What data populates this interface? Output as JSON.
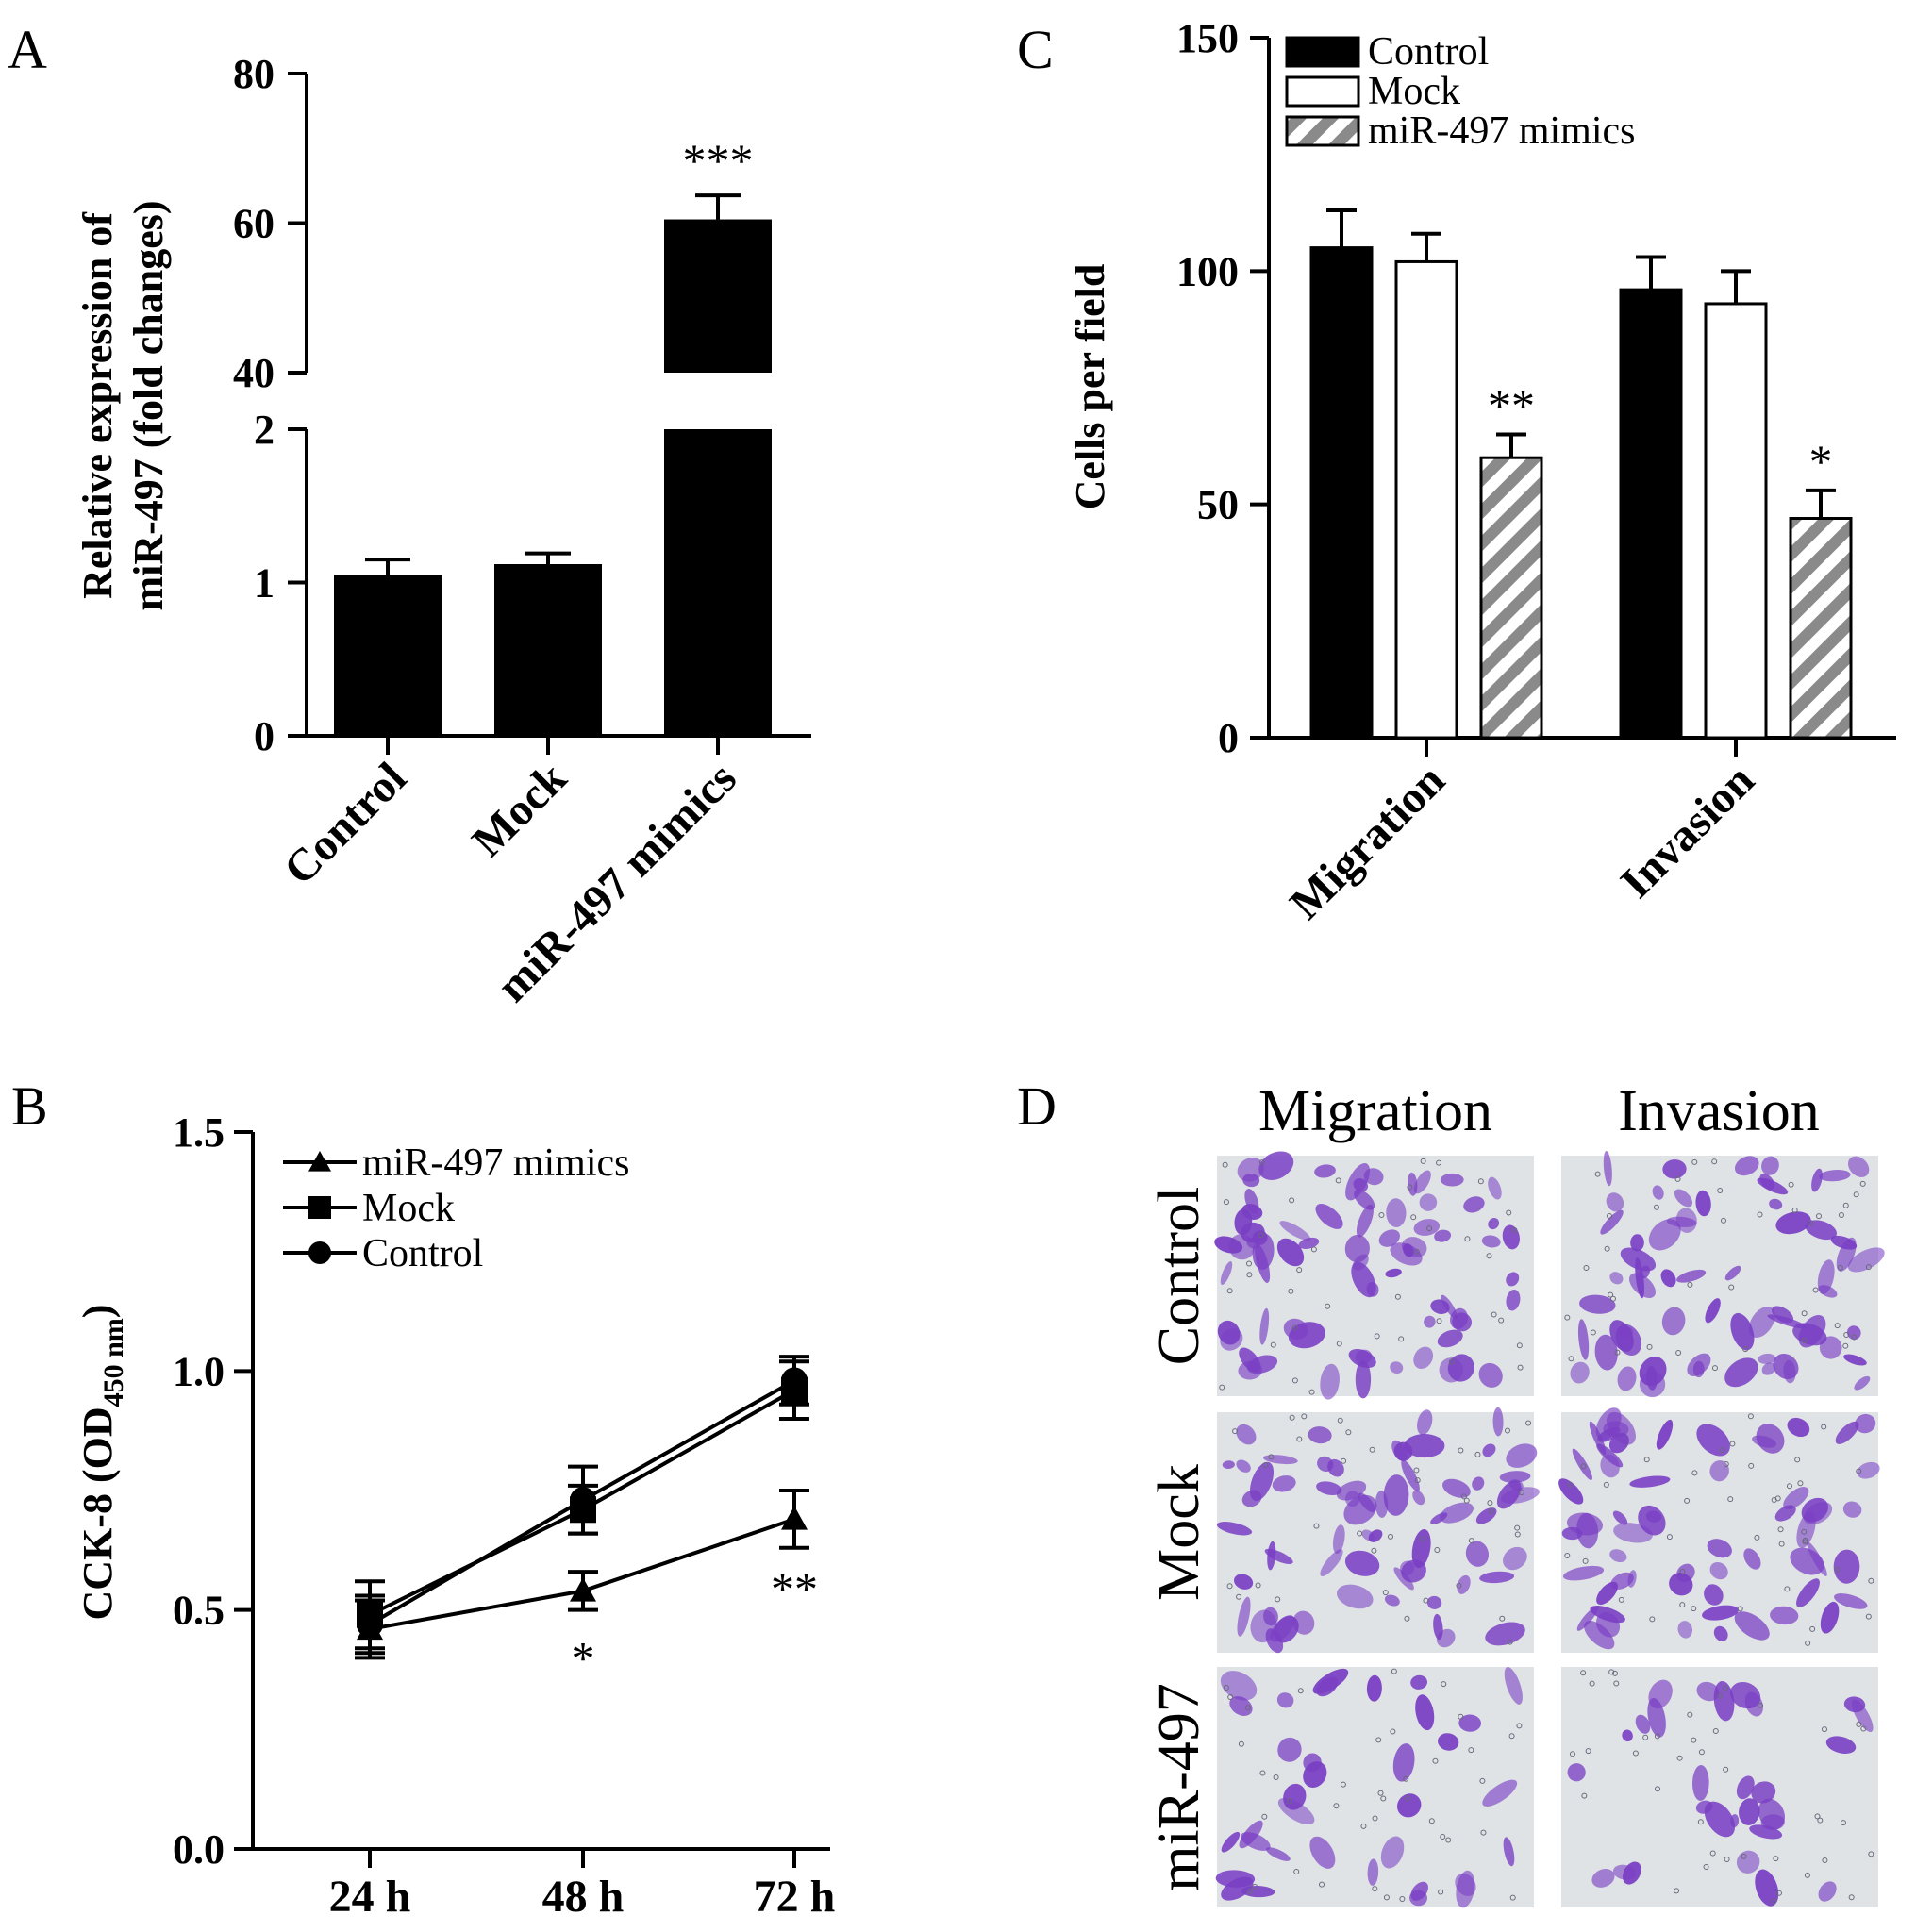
{
  "chart_data": [
    {
      "panel": "A",
      "type": "bar",
      "ylabel_line1": "Relative expression of",
      "ylabel_line2": "miR-497 (fold changes)",
      "categories": [
        "Control",
        "Mock",
        "miR-497 mimics"
      ],
      "values": [
        1.05,
        1.12,
        60.5
      ],
      "errors": [
        0.1,
        0.07,
        3.2
      ],
      "significance": [
        "",
        "",
        "***"
      ],
      "axis_break": true,
      "lower_ticks": [
        "0",
        "1",
        "2"
      ],
      "upper_ticks": [
        "40",
        "60",
        "80"
      ],
      "ylim_lower": [
        0,
        2
      ],
      "ylim_upper": [
        40,
        80
      ],
      "bar_color": "#000000"
    },
    {
      "panel": "C",
      "type": "bar",
      "ylabel": "Cells per field",
      "categories": [
        "Migration",
        "Invasion"
      ],
      "ylim": [
        0,
        150
      ],
      "yticks": [
        "0",
        "50",
        "100",
        "150"
      ],
      "legend_position": "top-left",
      "series": [
        {
          "name": "Control",
          "style": "solid",
          "color": "#000000",
          "values": [
            105,
            96
          ],
          "errors": [
            8,
            7
          ],
          "significance": [
            "",
            ""
          ]
        },
        {
          "name": "Mock",
          "style": "open",
          "color": "#ffffff",
          "values": [
            102,
            93
          ],
          "errors": [
            6,
            7
          ],
          "significance": [
            "",
            ""
          ]
        },
        {
          "name": "miR-497 mimics",
          "style": "hatched",
          "color": "#888888",
          "values": [
            60,
            47
          ],
          "errors": [
            5,
            6
          ],
          "significance": [
            "**",
            "*"
          ]
        }
      ]
    },
    {
      "panel": "B",
      "type": "line",
      "ylabel_main": "CCK-8 (OD",
      "ylabel_sub": "450 nm",
      "ylabel_end": ")",
      "categories": [
        "24 h",
        "48 h",
        "72 h"
      ],
      "ylim": [
        0,
        1.5
      ],
      "yticks": [
        "0.0",
        "0.5",
        "1.0",
        "1.5"
      ],
      "legend_position": "top-left",
      "series": [
        {
          "name": "miR-497 mimics",
          "marker": "triangle",
          "values": [
            0.46,
            0.54,
            0.69
          ],
          "errors": [
            0.06,
            0.04,
            0.06
          ],
          "significance": [
            "",
            "*",
            "**"
          ]
        },
        {
          "name": "Mock",
          "marker": "square",
          "values": [
            0.49,
            0.71,
            0.96
          ],
          "errors": [
            0.07,
            0.05,
            0.06
          ],
          "significance": [
            "",
            "",
            ""
          ]
        },
        {
          "name": "Control",
          "marker": "circle",
          "values": [
            0.47,
            0.73,
            0.98
          ],
          "errors": [
            0.06,
            0.07,
            0.05
          ],
          "significance": [
            "",
            "",
            ""
          ]
        }
      ]
    }
  ],
  "panel_labels": {
    "a": "A",
    "b": "B",
    "c": "C",
    "d": "D"
  },
  "panel_d": {
    "columns": [
      "Migration",
      "Invasion"
    ],
    "rows": [
      "Control",
      "Mock",
      "miR-497"
    ],
    "stain_color": "#7a3fc4",
    "background_color": "#dfe3e6"
  }
}
